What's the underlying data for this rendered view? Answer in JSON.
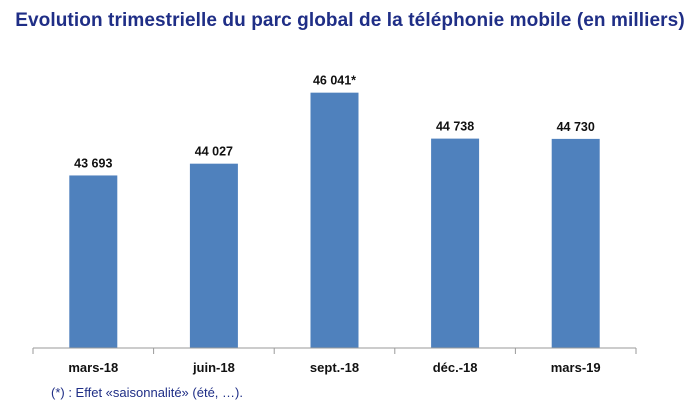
{
  "chart_data": {
    "type": "bar",
    "title": "Evolution trimestrielle du parc global de la téléphonie mobile (en milliers)",
    "xlabel": "",
    "ylabel": "",
    "categories": [
      "mars-18",
      "juin-18",
      "sept.-18",
      "déc.-18",
      "mars-19"
    ],
    "values": [
      43693,
      44027,
      46041,
      44738,
      44730
    ],
    "data_labels": [
      "43 693",
      "44 027",
      "46 041*",
      "44 738",
      "44 730"
    ],
    "ylim": [
      38800,
      46400
    ],
    "grid": false,
    "legend": "none",
    "bar_color": "#4f81bd",
    "footnote": "(*) : Effet «saisonnalité» (été, …)."
  }
}
